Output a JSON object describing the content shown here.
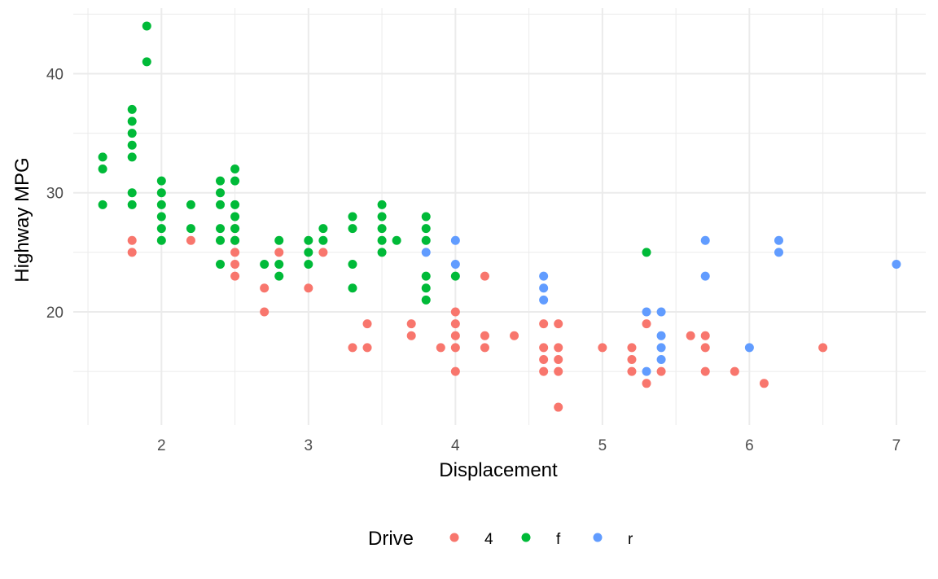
{
  "chart_data": {
    "type": "scatter",
    "title": "",
    "xlabel": "Displacement",
    "ylabel": "Highway MPG",
    "xlim": [
      1.4,
      7.2
    ],
    "ylim": [
      10.5,
      45.5
    ],
    "x_ticks": [
      2,
      3,
      4,
      5,
      6,
      7
    ],
    "y_ticks": [
      20,
      30,
      40
    ],
    "grid": true,
    "legend": {
      "title": "Drive",
      "placement": "bottom"
    },
    "series": [
      {
        "name": "4",
        "color": "#F8766D",
        "points": [
          [
            1.8,
            26
          ],
          [
            1.8,
            25
          ],
          [
            2.2,
            26
          ],
          [
            2.5,
            27
          ],
          [
            2.5,
            26
          ],
          [
            2.5,
            25
          ],
          [
            2.5,
            24
          ],
          [
            2.5,
            23
          ],
          [
            2.7,
            22
          ],
          [
            2.7,
            20
          ],
          [
            2.8,
            25
          ],
          [
            3.0,
            22
          ],
          [
            3.1,
            25
          ],
          [
            3.3,
            17
          ],
          [
            3.4,
            19
          ],
          [
            3.4,
            17
          ],
          [
            3.7,
            19
          ],
          [
            3.7,
            18
          ],
          [
            3.9,
            17
          ],
          [
            4.0,
            20
          ],
          [
            4.0,
            19
          ],
          [
            4.0,
            18
          ],
          [
            4.0,
            17
          ],
          [
            4.0,
            15
          ],
          [
            4.2,
            23
          ],
          [
            4.2,
            18
          ],
          [
            4.2,
            17
          ],
          [
            4.4,
            18
          ],
          [
            4.6,
            19
          ],
          [
            4.6,
            17
          ],
          [
            4.6,
            16
          ],
          [
            4.6,
            15
          ],
          [
            4.7,
            19
          ],
          [
            4.7,
            17
          ],
          [
            4.7,
            16
          ],
          [
            4.7,
            15
          ],
          [
            4.7,
            12
          ],
          [
            5.0,
            17
          ],
          [
            5.2,
            17
          ],
          [
            5.2,
            16
          ],
          [
            5.2,
            15
          ],
          [
            5.3,
            19
          ],
          [
            5.3,
            14
          ],
          [
            5.4,
            15
          ],
          [
            5.6,
            18
          ],
          [
            5.7,
            18
          ],
          [
            5.7,
            17
          ],
          [
            5.7,
            15
          ],
          [
            5.9,
            15
          ],
          [
            6.1,
            14
          ],
          [
            6.5,
            17
          ]
        ]
      },
      {
        "name": "f",
        "color": "#00BA38",
        "points": [
          [
            1.6,
            33
          ],
          [
            1.6,
            32
          ],
          [
            1.6,
            29
          ],
          [
            1.8,
            37
          ],
          [
            1.8,
            36
          ],
          [
            1.8,
            35
          ],
          [
            1.8,
            34
          ],
          [
            1.8,
            33
          ],
          [
            1.8,
            30
          ],
          [
            1.8,
            29
          ],
          [
            1.9,
            44
          ],
          [
            1.9,
            41
          ],
          [
            2.0,
            31
          ],
          [
            2.0,
            30
          ],
          [
            2.0,
            29
          ],
          [
            2.0,
            28
          ],
          [
            2.0,
            27
          ],
          [
            2.0,
            26
          ],
          [
            2.2,
            29
          ],
          [
            2.2,
            27
          ],
          [
            2.4,
            31
          ],
          [
            2.4,
            30
          ],
          [
            2.4,
            29
          ],
          [
            2.4,
            27
          ],
          [
            2.4,
            26
          ],
          [
            2.4,
            24
          ],
          [
            2.5,
            32
          ],
          [
            2.5,
            31
          ],
          [
            2.5,
            29
          ],
          [
            2.5,
            28
          ],
          [
            2.5,
            27
          ],
          [
            2.5,
            26
          ],
          [
            2.7,
            24
          ],
          [
            2.8,
            26
          ],
          [
            2.8,
            24
          ],
          [
            2.8,
            23
          ],
          [
            3.0,
            26
          ],
          [
            3.0,
            25
          ],
          [
            3.0,
            24
          ],
          [
            3.1,
            27
          ],
          [
            3.1,
            26
          ],
          [
            3.3,
            28
          ],
          [
            3.3,
            27
          ],
          [
            3.3,
            24
          ],
          [
            3.3,
            22
          ],
          [
            3.5,
            29
          ],
          [
            3.5,
            28
          ],
          [
            3.5,
            27
          ],
          [
            3.5,
            26
          ],
          [
            3.5,
            25
          ],
          [
            3.6,
            26
          ],
          [
            3.8,
            28
          ],
          [
            3.8,
            27
          ],
          [
            3.8,
            26
          ],
          [
            3.8,
            23
          ],
          [
            3.8,
            22
          ],
          [
            3.8,
            21
          ],
          [
            4.0,
            23
          ],
          [
            5.3,
            25
          ]
        ]
      },
      {
        "name": "r",
        "color": "#619CFF",
        "points": [
          [
            3.8,
            25
          ],
          [
            4.0,
            26
          ],
          [
            4.0,
            24
          ],
          [
            4.6,
            23
          ],
          [
            4.6,
            22
          ],
          [
            4.6,
            21
          ],
          [
            5.3,
            20
          ],
          [
            5.3,
            15
          ],
          [
            5.4,
            20
          ],
          [
            5.4,
            18
          ],
          [
            5.4,
            17
          ],
          [
            5.4,
            16
          ],
          [
            5.7,
            26
          ],
          [
            5.7,
            23
          ],
          [
            6.0,
            17
          ],
          [
            6.2,
            26
          ],
          [
            6.2,
            25
          ],
          [
            7.0,
            24
          ]
        ]
      }
    ]
  }
}
